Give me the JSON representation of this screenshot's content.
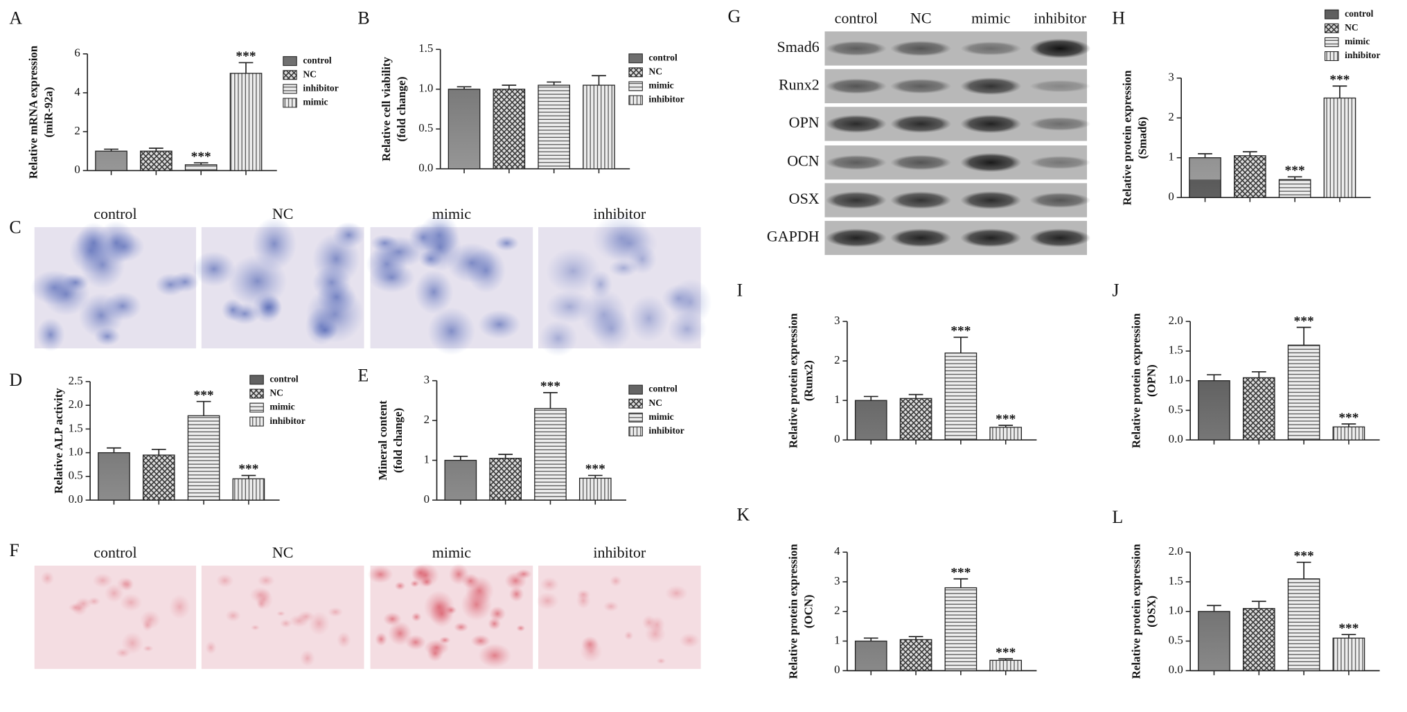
{
  "chart_data": [
    {
      "type": "bar",
      "panel": "A",
      "ylabel": [
        "Relative mRNA expression",
        "(miR-92a)"
      ],
      "ylim": [
        0,
        6
      ],
      "yticks": [
        0,
        2,
        4,
        6
      ],
      "series": [
        {
          "name": "control",
          "pattern": "solid",
          "values": [
            1.0
          ],
          "errors": [
            0.1
          ]
        },
        {
          "name": "NC",
          "pattern": "cross",
          "values": [
            1.0
          ],
          "errors": [
            0.15
          ]
        },
        {
          "name": "inhibitor",
          "pattern": "hlines",
          "values": [
            0.3
          ],
          "errors": [
            0.1
          ],
          "annotation": "***"
        },
        {
          "name": "mimic",
          "pattern": "vlines",
          "values": [
            5.0
          ],
          "errors": [
            0.55
          ],
          "annotation": "***"
        }
      ]
    },
    {
      "type": "bar",
      "panel": "B",
      "ylabel": [
        "Relative cell viability",
        "(fold change)"
      ],
      "ylim": [
        0,
        1.5
      ],
      "yticks": [
        {
          "value": 0,
          "label": "0.0"
        },
        0.5,
        {
          "value": 1,
          "label": "1.0"
        },
        1.5
      ],
      "series": [
        {
          "name": "control",
          "pattern": "solid",
          "values": [
            1.0
          ],
          "errors": [
            0.03
          ]
        },
        {
          "name": "NC",
          "pattern": "cross",
          "values": [
            1.0
          ],
          "errors": [
            0.05
          ]
        },
        {
          "name": "mimic",
          "pattern": "hlines",
          "values": [
            1.05
          ],
          "errors": [
            0.04
          ]
        },
        {
          "name": "inhibitor",
          "pattern": "vlines",
          "values": [
            1.05
          ],
          "errors": [
            0.12
          ]
        }
      ]
    },
    {
      "type": "bar",
      "panel": "D",
      "ylabel": [
        "Relative ALP activity"
      ],
      "ylim": [
        0,
        2.5
      ],
      "yticks": [
        {
          "value": 0,
          "label": "0.0"
        },
        0.5,
        {
          "value": 1,
          "label": "1.0"
        },
        1.5,
        {
          "value": 2,
          "label": "2.0"
        },
        2.5
      ],
      "series": [
        {
          "name": "control",
          "pattern": "solid",
          "values": [
            1.0
          ],
          "errors": [
            0.1
          ]
        },
        {
          "name": "NC",
          "pattern": "cross",
          "values": [
            0.95
          ],
          "errors": [
            0.12
          ]
        },
        {
          "name": "mimic",
          "pattern": "hlines",
          "values": [
            1.78
          ],
          "errors": [
            0.3
          ],
          "annotation": "***"
        },
        {
          "name": "inhibitor",
          "pattern": "vlines",
          "values": [
            0.45
          ],
          "errors": [
            0.07
          ],
          "annotation": "***"
        }
      ]
    },
    {
      "type": "bar",
      "panel": "E",
      "ylabel": [
        "Mineral content",
        "(fold change)"
      ],
      "ylim": [
        0,
        3
      ],
      "yticks": [
        0,
        1,
        2,
        3
      ],
      "series": [
        {
          "name": "control",
          "pattern": "solid",
          "values": [
            1.0
          ],
          "errors": [
            0.1
          ]
        },
        {
          "name": "NC",
          "pattern": "cross",
          "values": [
            1.05
          ],
          "errors": [
            0.1
          ]
        },
        {
          "name": "mimic",
          "pattern": "hlines",
          "values": [
            2.3
          ],
          "errors": [
            0.4
          ],
          "annotation": "***"
        },
        {
          "name": "inhibitor",
          "pattern": "vlines",
          "values": [
            0.55
          ],
          "errors": [
            0.07
          ],
          "annotation": "***"
        }
      ]
    },
    {
      "type": "bar",
      "panel": "H",
      "ylabel": [
        "Relative protein expression",
        "(Smad6)"
      ],
      "ylim": [
        0,
        3
      ],
      "yticks": [
        0,
        1,
        2,
        3
      ],
      "series": [
        {
          "name": "control",
          "pattern": "solid",
          "values": [
            1.0
          ],
          "errors": [
            0.1
          ]
        },
        {
          "name": "NC",
          "pattern": "cross",
          "values": [
            1.05
          ],
          "errors": [
            0.1
          ]
        },
        {
          "name": "mimic",
          "pattern": "hlines",
          "values": [
            0.45
          ],
          "errors": [
            0.07
          ],
          "annotation": "***"
        },
        {
          "name": "inhibitor",
          "pattern": "vlines",
          "values": [
            2.5
          ],
          "errors": [
            0.3
          ],
          "annotation": "***"
        }
      ]
    },
    {
      "type": "bar",
      "panel": "I",
      "ylabel": [
        "Relative protein expression",
        "(Runx2)"
      ],
      "ylim": [
        0,
        3
      ],
      "yticks": [
        0,
        1,
        2,
        3
      ],
      "series": [
        {
          "pattern": "solid",
          "values": [
            1.0
          ],
          "errors": [
            0.1
          ]
        },
        {
          "pattern": "cross",
          "values": [
            1.05
          ],
          "errors": [
            0.1
          ]
        },
        {
          "pattern": "hlines",
          "values": [
            2.2
          ],
          "errors": [
            0.4
          ],
          "annotation": "***"
        },
        {
          "pattern": "vlines",
          "values": [
            0.32
          ],
          "errors": [
            0.05
          ],
          "annotation": "***"
        }
      ]
    },
    {
      "type": "bar",
      "panel": "J",
      "ylabel": [
        "Relative protein expression",
        "(OPN)"
      ],
      "ylim": [
        0,
        2
      ],
      "yticks": [
        {
          "value": 0,
          "label": "0.0"
        },
        0.5,
        {
          "value": 1,
          "label": "1.0"
        },
        1.5,
        {
          "value": 2,
          "label": "2.0"
        }
      ],
      "series": [
        {
          "pattern": "solid",
          "values": [
            1.0
          ],
          "errors": [
            0.1
          ]
        },
        {
          "pattern": "cross",
          "values": [
            1.05
          ],
          "errors": [
            0.1
          ]
        },
        {
          "pattern": "hlines",
          "values": [
            1.6
          ],
          "errors": [
            0.3
          ],
          "annotation": "***"
        },
        {
          "pattern": "vlines",
          "values": [
            0.22
          ],
          "errors": [
            0.05
          ],
          "annotation": "***"
        }
      ]
    },
    {
      "type": "bar",
      "panel": "K",
      "ylabel": [
        "Relative protein expression",
        "(OCN)"
      ],
      "ylim": [
        0,
        4
      ],
      "yticks": [
        0,
        1,
        2,
        3,
        4
      ],
      "series": [
        {
          "pattern": "solid",
          "values": [
            1.0
          ],
          "errors": [
            0.1
          ]
        },
        {
          "pattern": "cross",
          "values": [
            1.05
          ],
          "errors": [
            0.1
          ]
        },
        {
          "pattern": "hlines",
          "values": [
            2.8
          ],
          "errors": [
            0.3
          ],
          "annotation": "***"
        },
        {
          "pattern": "vlines",
          "values": [
            0.35
          ],
          "errors": [
            0.05
          ],
          "annotation": "***"
        }
      ]
    },
    {
      "type": "bar",
      "panel": "L",
      "ylabel": [
        "Relative protein expression",
        "(OSX)"
      ],
      "ylim": [
        0,
        2
      ],
      "yticks": [
        {
          "value": 0,
          "label": "0.0"
        },
        0.5,
        {
          "value": 1,
          "label": "1.0"
        },
        1.5,
        {
          "value": 2,
          "label": "2.0"
        }
      ],
      "series": [
        {
          "pattern": "solid",
          "values": [
            1.0
          ],
          "errors": [
            0.1
          ]
        },
        {
          "pattern": "cross",
          "values": [
            1.05
          ],
          "errors": [
            0.12
          ]
        },
        {
          "pattern": "hlines",
          "values": [
            1.55
          ],
          "errors": [
            0.28
          ],
          "annotation": "***"
        },
        {
          "pattern": "vlines",
          "values": [
            0.55
          ],
          "errors": [
            0.06
          ],
          "annotation": "***"
        }
      ]
    }
  ],
  "stain_panels": [
    {
      "panel": "C",
      "stain": "blue",
      "labels": [
        "control",
        "NC",
        "mimic",
        "inhibitor"
      ]
    },
    {
      "panel": "F",
      "stain": "red",
      "labels": [
        "control",
        "NC",
        "mimic",
        "inhibitor"
      ]
    }
  ],
  "western_blot": {
    "panel": "G",
    "lanes": [
      "control",
      "NC",
      "mimic",
      "inhibitor"
    ],
    "proteins": [
      "Smad6",
      "Runx2",
      "OPN",
      "OCN",
      "OSX",
      "GAPDH"
    ]
  }
}
